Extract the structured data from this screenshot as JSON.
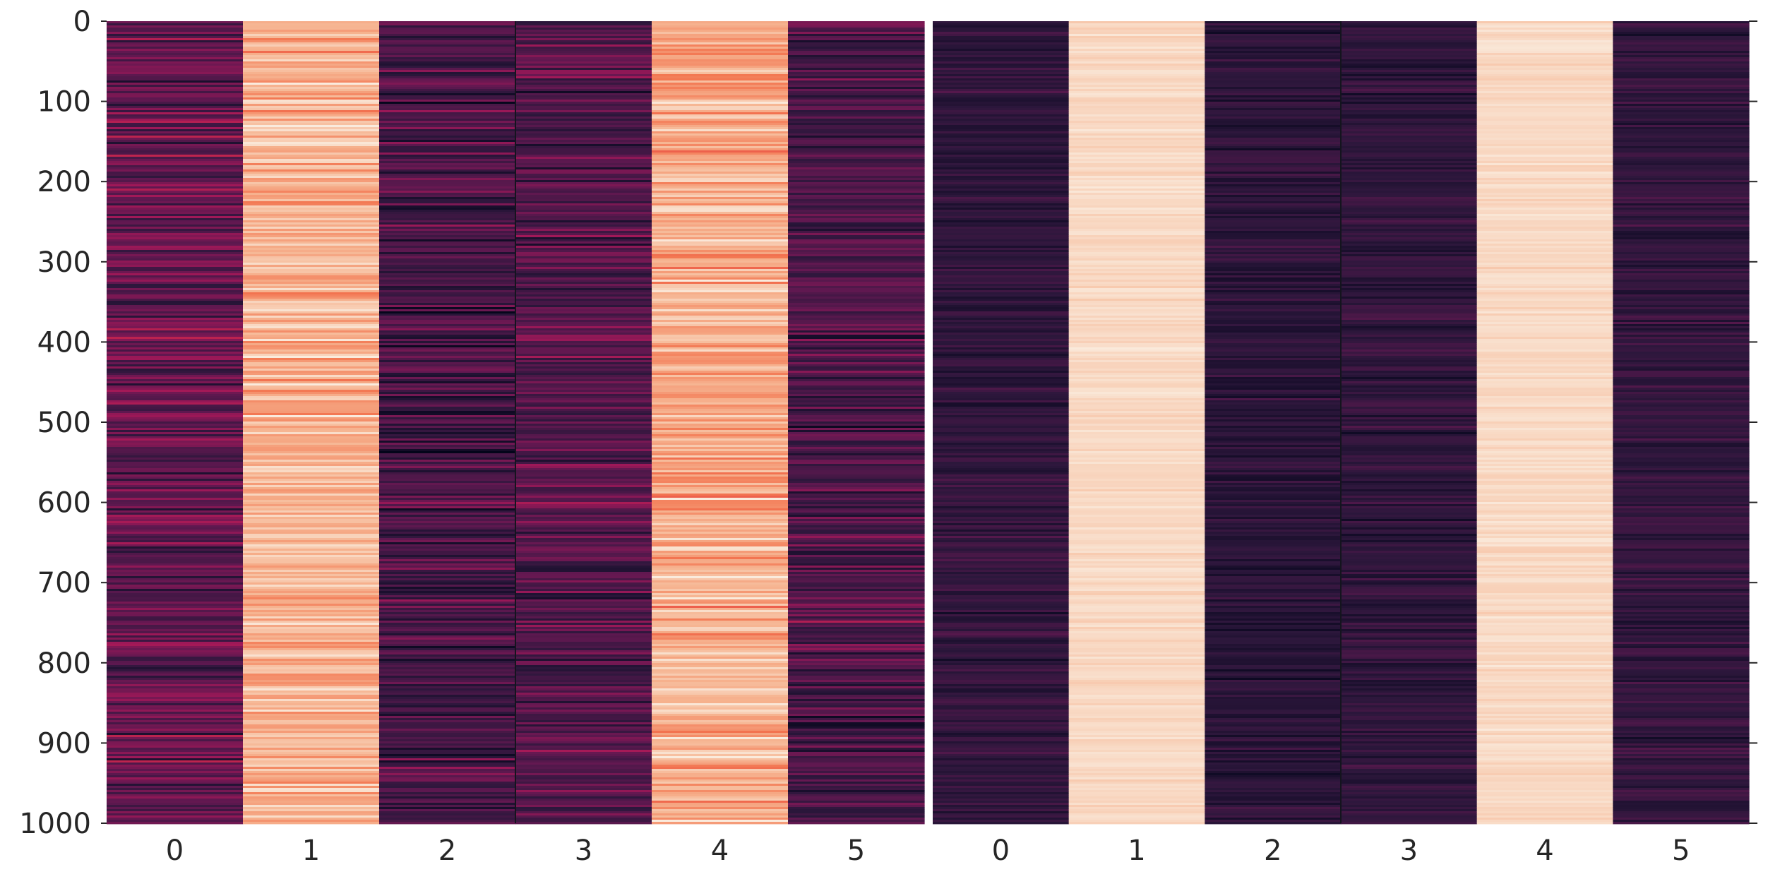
{
  "chart_data": [
    {
      "type": "heatmap",
      "title": "",
      "xlabel": "",
      "ylabel": "",
      "columns": [
        "0",
        "1",
        "2",
        "3",
        "4",
        "5"
      ],
      "n_rows": 1000,
      "ylim": [
        0,
        1000
      ],
      "y_ticks": [
        "0",
        "100",
        "200",
        "300",
        "400",
        "500",
        "600",
        "700",
        "800",
        "900",
        "1000"
      ],
      "colormap": "rocket",
      "column_mean_intensity": [
        0.3,
        0.88,
        0.22,
        0.26,
        0.86,
        0.24
      ],
      "column_variation": [
        0.13,
        0.08,
        0.13,
        0.12,
        0.09,
        0.12
      ],
      "grid": false,
      "colorbar": false
    },
    {
      "type": "heatmap",
      "title": "",
      "xlabel": "",
      "ylabel": "",
      "columns": [
        "0",
        "1",
        "2",
        "3",
        "4",
        "5"
      ],
      "n_rows": 1000,
      "ylim": [
        0,
        1000
      ],
      "y_ticks": [
        "0",
        "100",
        "200",
        "300",
        "400",
        "500",
        "600",
        "700",
        "800",
        "900",
        "1000"
      ],
      "colormap": "rocket",
      "column_mean_intensity": [
        0.16,
        0.96,
        0.14,
        0.16,
        0.96,
        0.16
      ],
      "column_variation": [
        0.06,
        0.02,
        0.06,
        0.06,
        0.02,
        0.06
      ],
      "grid": false,
      "colorbar": false
    }
  ]
}
